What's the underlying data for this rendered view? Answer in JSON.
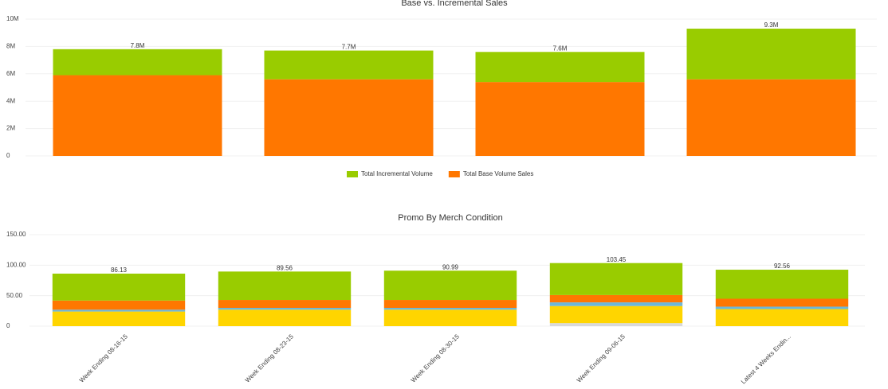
{
  "chart_data": [
    {
      "type": "stacked-bar",
      "title": "Base vs. Incremental Sales",
      "categories": [
        null,
        null,
        null,
        null
      ],
      "series": [
        {
          "name": "Total Incremental Volume",
          "color": "#99cc00",
          "values": [
            1900000,
            2100000,
            2200000,
            3700000
          ]
        },
        {
          "name": "Total Base Volume Sales",
          "color": "#ff7700",
          "values": [
            5900000,
            5600000,
            5400000,
            5600000
          ]
        }
      ],
      "totals": [
        7800000,
        7700000,
        7600000,
        9300000
      ],
      "total_labels": [
        "7.8M",
        "7.7M",
        "7.6M",
        "9.3M"
      ],
      "ylim": [
        0,
        10000000
      ],
      "yticks": [
        0,
        {
          "value": 2000000,
          "label": "2M"
        },
        {
          "value": 4000000,
          "label": "4M"
        },
        {
          "value": 6000000,
          "label": "6M"
        },
        {
          "value": 8000000,
          "label": "8M"
        },
        {
          "value": 10000000,
          "label": "10M"
        }
      ],
      "grid": true,
      "legend": "bottom"
    },
    {
      "type": "stacked-bar",
      "title": "Promo By Merch Condition",
      "categories": [
        "Week Ending 08-16-15",
        "Week Ending 08-23-15",
        "Week Ending 08-30-15",
        "Week Ending 09-06-15",
        "Latest 4 Weeks Endin..."
      ],
      "series": [
        {
          "color": "#99cc00",
          "values": [
            44.13,
            46.56,
            47.99,
            52.45,
            47.56
          ]
        },
        {
          "color": "#ff7700",
          "values": [
            15,
            13,
            13,
            12,
            13
          ]
        },
        {
          "color": "#6fb7d6",
          "values": [
            3,
            3,
            3,
            6,
            4
          ]
        },
        {
          "color": "#ffd500",
          "values": [
            24,
            27,
            27,
            28,
            28
          ]
        },
        {
          "color": "#d9d9d9",
          "values": [
            0,
            0,
            0,
            5,
            0
          ]
        }
      ],
      "totals": [
        86.13,
        89.56,
        90.99,
        103.45,
        92.56
      ],
      "total_labels": [
        "86.13",
        "89.56",
        "90.99",
        "103.45",
        "92.56"
      ],
      "ylim": [
        0,
        150
      ],
      "yticks": [
        0,
        {
          "value": 50,
          "label": "50.00"
        },
        {
          "value": 100,
          "label": "100.00"
        },
        {
          "value": 150,
          "label": "150.00"
        }
      ],
      "grid": true
    }
  ]
}
